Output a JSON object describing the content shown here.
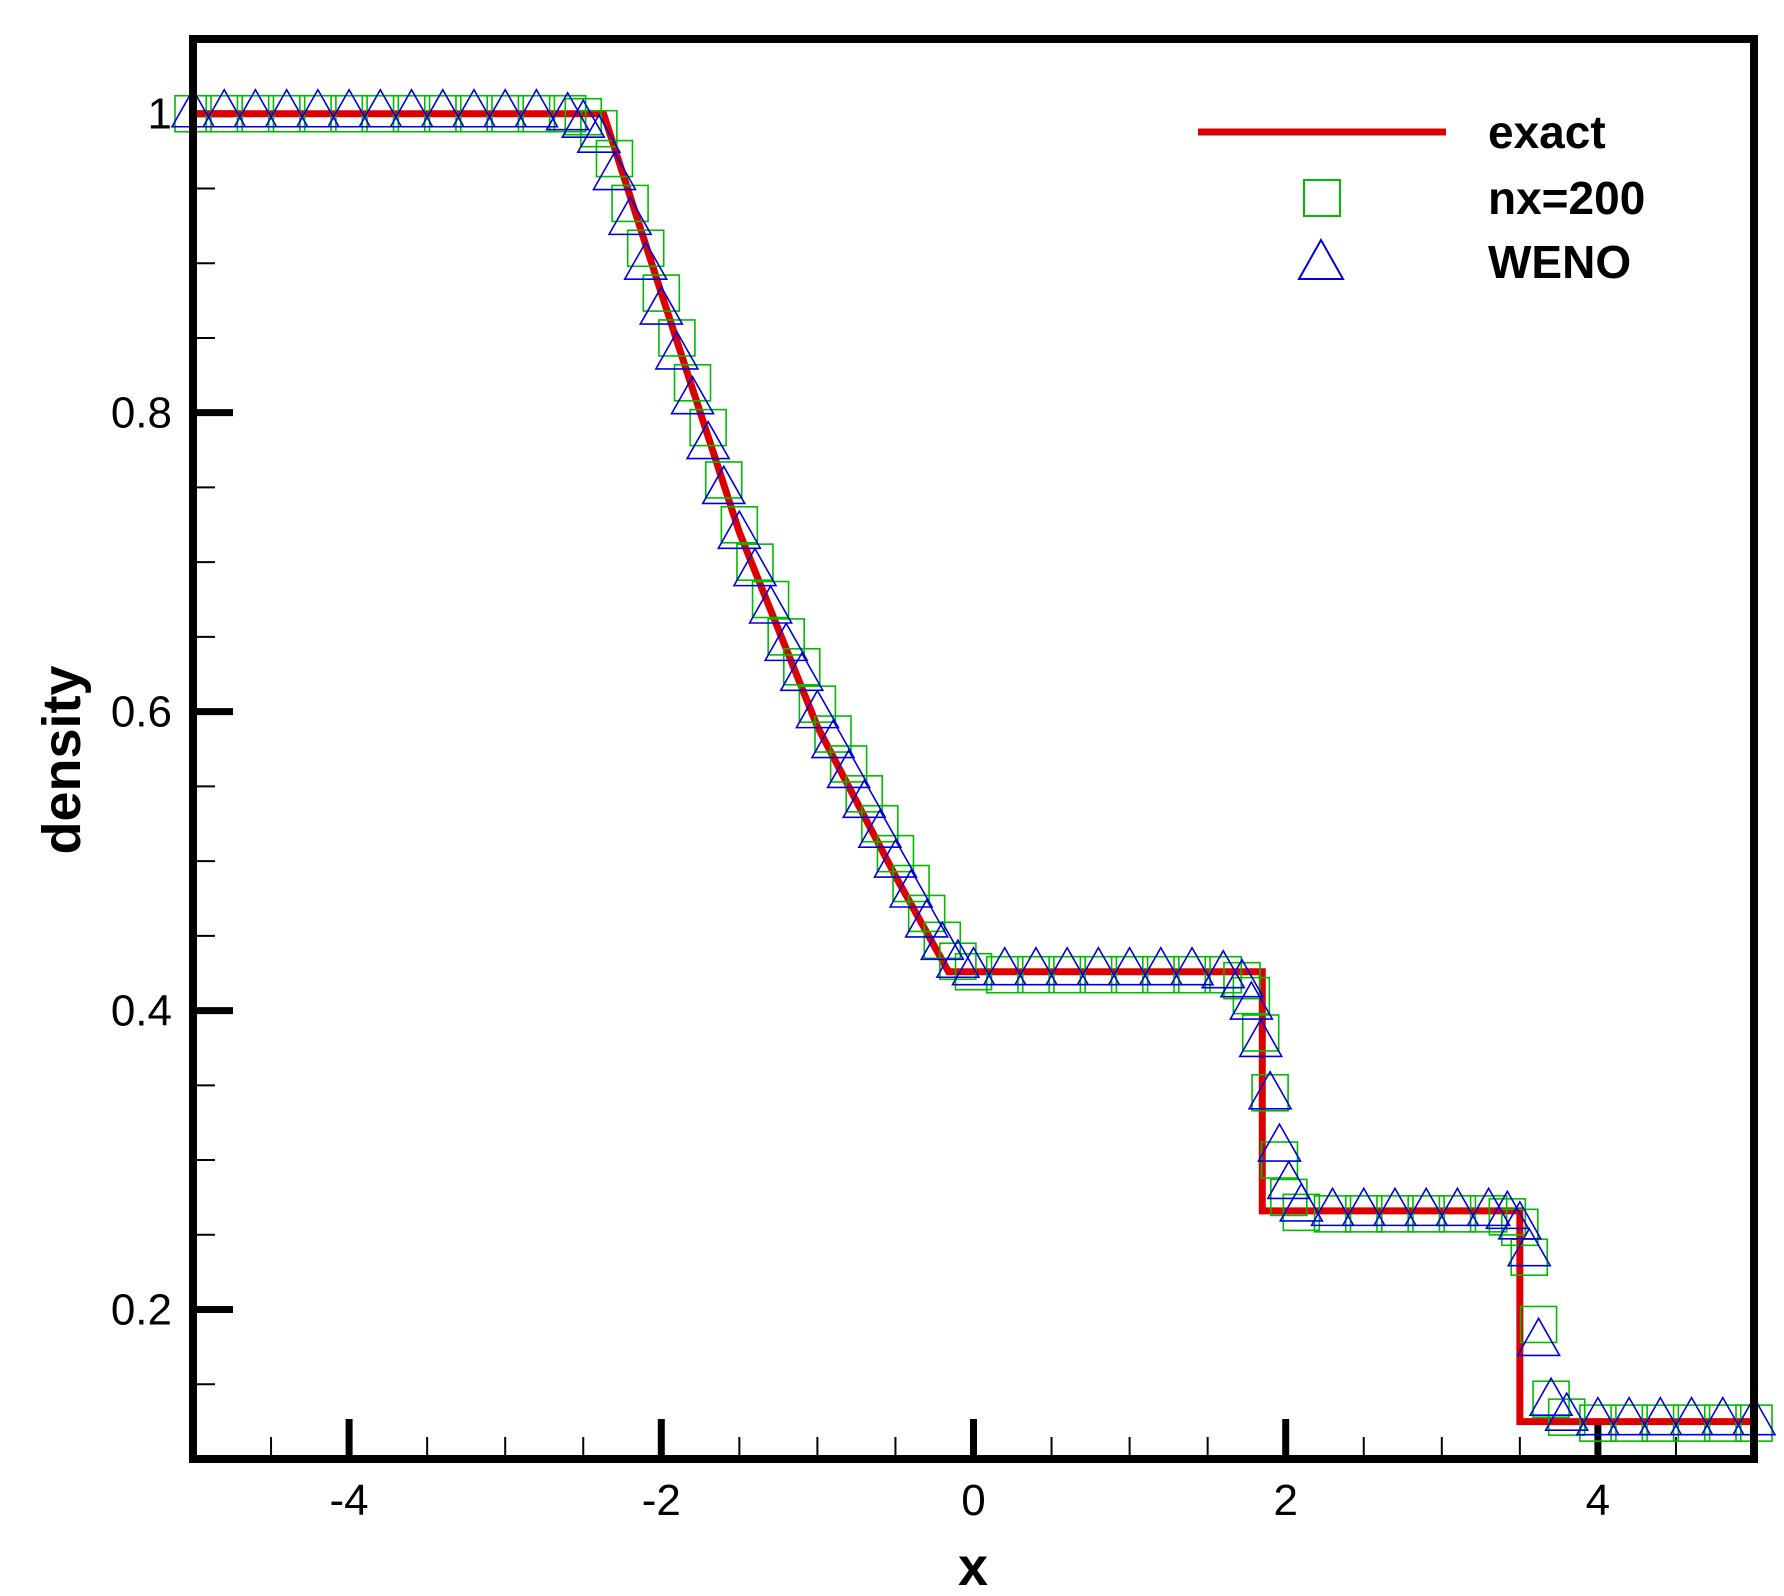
{
  "chart_data": {
    "type": "line",
    "xlabel": "x",
    "ylabel": "density",
    "xlim": [
      -5,
      5
    ],
    "ylim": [
      0.1,
      1.05
    ],
    "x_ticks": [
      -4,
      -2,
      0,
      2,
      4
    ],
    "y_ticks": [
      0.2,
      0.4,
      0.6,
      0.8,
      1
    ],
    "x_tick_labels": [
      "-4",
      "-2",
      "0",
      "2",
      "4"
    ],
    "y_tick_labels": [
      "0.2",
      "0.4",
      "0.6",
      "0.8",
      "1"
    ],
    "grid": false,
    "legend_position": "top-right",
    "colors": {
      "exact": "#dd0000",
      "nx200": "#00bb00",
      "weno": "#0000dd",
      "axes": "#000000"
    },
    "series": [
      {
        "name": "exact",
        "style": "line",
        "x": [
          -5,
          -2.37,
          -2.0,
          -1.5,
          -1.0,
          -0.5,
          -0.16,
          1.85,
          1.85,
          3.5,
          3.5,
          5
        ],
        "y": [
          1.0,
          1.0,
          0.88,
          0.72,
          0.59,
          0.49,
          0.426,
          0.426,
          0.266,
          0.266,
          0.125,
          0.125
        ]
      },
      {
        "name": "nx=200",
        "style": "markers",
        "marker": "square",
        "x": [
          -5,
          -4.8,
          -4.6,
          -4.4,
          -4.2,
          -4.0,
          -3.8,
          -3.6,
          -3.4,
          -3.2,
          -3.0,
          -2.8,
          -2.6,
          -2.5,
          -2.4,
          -2.3,
          -2.2,
          -2.1,
          -2.0,
          -1.9,
          -1.8,
          -1.7,
          -1.6,
          -1.5,
          -1.4,
          -1.3,
          -1.2,
          -1.1,
          -1.0,
          -0.9,
          -0.8,
          -0.7,
          -0.6,
          -0.5,
          -0.4,
          -0.3,
          -0.2,
          -0.1,
          0.0,
          0.2,
          0.4,
          0.6,
          0.8,
          1.0,
          1.2,
          1.4,
          1.6,
          1.72,
          1.78,
          1.84,
          1.9,
          1.96,
          2.02,
          2.1,
          2.3,
          2.5,
          2.7,
          2.9,
          3.1,
          3.3,
          3.42,
          3.5,
          3.56,
          3.62,
          3.7,
          3.8,
          4.0,
          4.2,
          4.4,
          4.6,
          4.8,
          5.0
        ],
        "y": [
          1.0,
          1.0,
          1.0,
          1.0,
          1.0,
          1.0,
          1.0,
          1.0,
          1.0,
          1.0,
          1.0,
          1.0,
          1.0,
          0.998,
          0.99,
          0.97,
          0.94,
          0.91,
          0.88,
          0.85,
          0.82,
          0.79,
          0.755,
          0.725,
          0.7,
          0.675,
          0.65,
          0.63,
          0.605,
          0.585,
          0.565,
          0.545,
          0.525,
          0.505,
          0.485,
          0.465,
          0.447,
          0.433,
          0.426,
          0.424,
          0.424,
          0.424,
          0.424,
          0.424,
          0.424,
          0.424,
          0.424,
          0.42,
          0.41,
          0.385,
          0.345,
          0.3,
          0.275,
          0.265,
          0.264,
          0.264,
          0.264,
          0.264,
          0.264,
          0.264,
          0.262,
          0.255,
          0.235,
          0.19,
          0.14,
          0.128,
          0.124,
          0.124,
          0.124,
          0.124,
          0.124,
          0.124
        ]
      },
      {
        "name": "WENO",
        "style": "markers",
        "marker": "triangle",
        "x": [
          -5,
          -4.8,
          -4.6,
          -4.4,
          -4.2,
          -4.0,
          -3.8,
          -3.6,
          -3.4,
          -3.2,
          -3.0,
          -2.8,
          -2.6,
          -2.5,
          -2.4,
          -2.3,
          -2.2,
          -2.1,
          -2.0,
          -1.9,
          -1.8,
          -1.7,
          -1.6,
          -1.5,
          -1.4,
          -1.3,
          -1.2,
          -1.1,
          -1.0,
          -0.9,
          -0.8,
          -0.7,
          -0.6,
          -0.5,
          -0.4,
          -0.3,
          -0.2,
          -0.1,
          0.0,
          0.2,
          0.4,
          0.6,
          0.8,
          1.0,
          1.2,
          1.4,
          1.6,
          1.72,
          1.78,
          1.84,
          1.9,
          1.96,
          2.02,
          2.1,
          2.3,
          2.5,
          2.7,
          2.9,
          3.1,
          3.3,
          3.42,
          3.5,
          3.56,
          3.62,
          3.7,
          3.8,
          4.0,
          4.2,
          4.4,
          4.6,
          4.8,
          5.0
        ],
        "y": [
          1.002,
          1.002,
          1.002,
          1.002,
          1.002,
          1.002,
          1.002,
          1.002,
          1.002,
          1.002,
          1.002,
          1.002,
          1.0,
          0.995,
          0.985,
          0.96,
          0.93,
          0.9,
          0.87,
          0.84,
          0.81,
          0.78,
          0.75,
          0.72,
          0.695,
          0.67,
          0.645,
          0.625,
          0.6,
          0.58,
          0.56,
          0.54,
          0.52,
          0.5,
          0.48,
          0.46,
          0.445,
          0.433,
          0.428,
          0.428,
          0.428,
          0.428,
          0.428,
          0.428,
          0.428,
          0.428,
          0.426,
          0.42,
          0.405,
          0.38,
          0.345,
          0.31,
          0.285,
          0.27,
          0.267,
          0.267,
          0.267,
          0.267,
          0.267,
          0.267,
          0.265,
          0.258,
          0.24,
          0.18,
          0.14,
          0.13,
          0.127,
          0.127,
          0.127,
          0.127,
          0.127,
          0.127
        ]
      }
    ]
  }
}
